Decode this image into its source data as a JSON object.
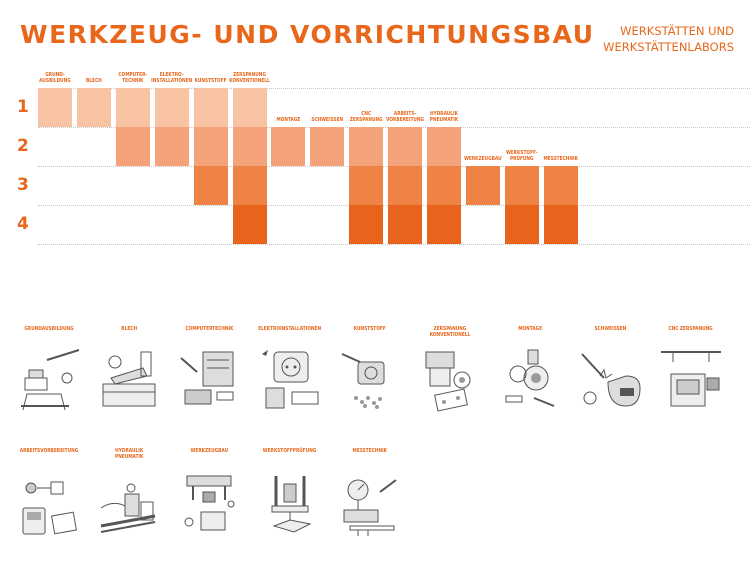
{
  "header": {
    "title": "WERKZEUG- UND VORRICHTUNGSBAU",
    "subtitle_line1": "WERKSTÄTTEN UND",
    "subtitle_line2": "WERKSTÄTTENLABORS"
  },
  "colors": {
    "accent": "#e8671b",
    "level1": "#f8c3a2",
    "level2": "#f3a27a",
    "level3": "#ee8345",
    "level4": "#e8631b"
  },
  "chart_data": {
    "type": "table",
    "rows": [
      "1",
      "2",
      "3",
      "4"
    ],
    "columns": [
      {
        "label": "GRUND-\nAUSBILDUNG",
        "years": [
          1
        ]
      },
      {
        "label": "BLECH",
        "years": [
          1
        ]
      },
      {
        "label": "COMPUTER-\nTECHNIK",
        "years": [
          1,
          2
        ]
      },
      {
        "label": "ELEKTRO-\nINSTALLATIONEN",
        "years": [
          1,
          2
        ]
      },
      {
        "label": "KUNSTSTOFF",
        "years": [
          1,
          2,
          3
        ]
      },
      {
        "label": "ZERSPANUNG\nKONVENTIONELL",
        "years": [
          1,
          2,
          3,
          4
        ]
      },
      {
        "label": "MONTAGE",
        "years": [
          2
        ]
      },
      {
        "label": "SCHWEISSEN",
        "years": [
          2
        ]
      },
      {
        "label": "CNC\nZERSPANUNG",
        "years": [
          2,
          3,
          4
        ]
      },
      {
        "label": "ARBEITS-\nVORBEREITUNG",
        "years": [
          2,
          3,
          4
        ]
      },
      {
        "label": "HYDRAULIK\nPNEUMATIK",
        "years": [
          2,
          3,
          4
        ]
      },
      {
        "label": "WERKZEUGBAU",
        "years": [
          3
        ]
      },
      {
        "label": "WERKSTOFF-\nPRÜFUNG",
        "years": [
          3,
          4
        ]
      },
      {
        "label": "MESSTECHNIK",
        "years": [
          3,
          4
        ]
      }
    ]
  },
  "illustrations": {
    "row1": [
      {
        "label": "GRUNDAUSBILDUNG",
        "icon": "vise-hacksaw-icon"
      },
      {
        "label": "BLECH",
        "icon": "sheet-metal-bender-icon"
      },
      {
        "label": "COMPUTERTECHNIK",
        "icon": "computer-hardware-icon"
      },
      {
        "label": "ELEKTROINSTALLATIONEN",
        "icon": "socket-multimeter-icon"
      },
      {
        "label": "KUNSTSTOFF",
        "icon": "plastic-granulate-icon"
      },
      {
        "label": "ZERSPANUNG\nKONVENTIONELL",
        "icon": "lathe-chuck-icon"
      },
      {
        "label": "MONTAGE",
        "icon": "gear-assembly-icon"
      },
      {
        "label": "SCHWEISSEN",
        "icon": "welding-helmet-icon"
      },
      {
        "label": "CNC ZERSPANUNG",
        "icon": "cnc-machine-icon"
      }
    ],
    "row2": [
      {
        "label": "ARBEITSVORBEREITUNG",
        "icon": "planning-tablet-icon"
      },
      {
        "label": "HYDRAULIK\nPNEUMATIK",
        "icon": "hydraulic-valves-icon"
      },
      {
        "label": "WERKZEUGBAU",
        "icon": "press-tool-icon"
      },
      {
        "label": "WERKSTOFFPRÜFUNG",
        "icon": "testing-machine-icon"
      },
      {
        "label": "MESSTECHNIK",
        "icon": "dial-gauge-caliper-icon"
      }
    ]
  }
}
